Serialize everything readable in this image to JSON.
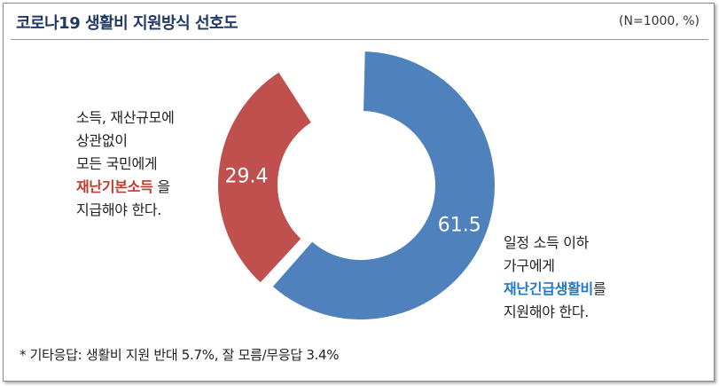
{
  "header": {
    "title": "코로나19 생활비 지원방식 선호도",
    "meta": "(N=1000, %)"
  },
  "chart_data": {
    "type": "pie",
    "donut": true,
    "categories": [
      "일정 소득 이하 가구에게 재난긴급생활비를 지원해야 한다.",
      "소득, 재산규모에 상관없이 모든 국민에게 재난기본소득을 지급해야 한다."
    ],
    "values": [
      61.5,
      29.4
    ],
    "value_labels": [
      "61.5",
      "29.4"
    ],
    "colors": [
      "#4f81bd",
      "#c0504d"
    ]
  },
  "annotations": {
    "left": {
      "line1": "소득, 재산규모에",
      "line2": "상관없이",
      "line3": "모든 국민에게",
      "highlight": "재난기본소득",
      "after_highlight": " 을",
      "line5": "지급해야  한다."
    },
    "right": {
      "line1": "일정 소득 이하",
      "line2": "가구에게",
      "highlight": "재난긴급생활비",
      "after_highlight": "를",
      "line4": "지원해야  한다."
    }
  },
  "footnote": "* 기타응답: 생활비 지원 반대 5.7%, 잘 모름/무응답 3.4%"
}
